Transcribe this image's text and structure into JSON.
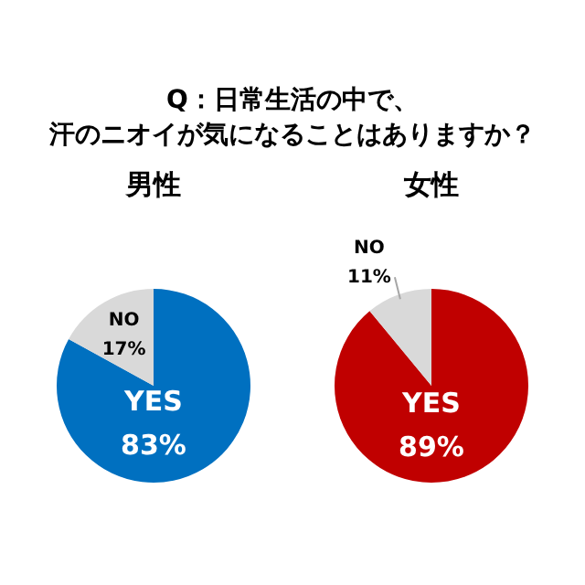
{
  "chart_data": [
    {
      "type": "pie",
      "title": "Q：日常生活の中で、汗のニオイが気になることはありますか？",
      "subtitle": "男性",
      "categories": [
        "YES",
        "NO"
      ],
      "values": [
        83,
        17
      ],
      "colors": [
        "#0070c0",
        "#d9d9d9"
      ],
      "value_labels": [
        "83%",
        "17%"
      ],
      "legend": false
    },
    {
      "type": "pie",
      "subtitle": "女性",
      "categories": [
        "YES",
        "NO"
      ],
      "values": [
        89,
        11
      ],
      "colors": [
        "#c00000",
        "#d9d9d9"
      ],
      "value_labels": [
        "89%",
        "11%"
      ],
      "legend": false
    }
  ]
}
